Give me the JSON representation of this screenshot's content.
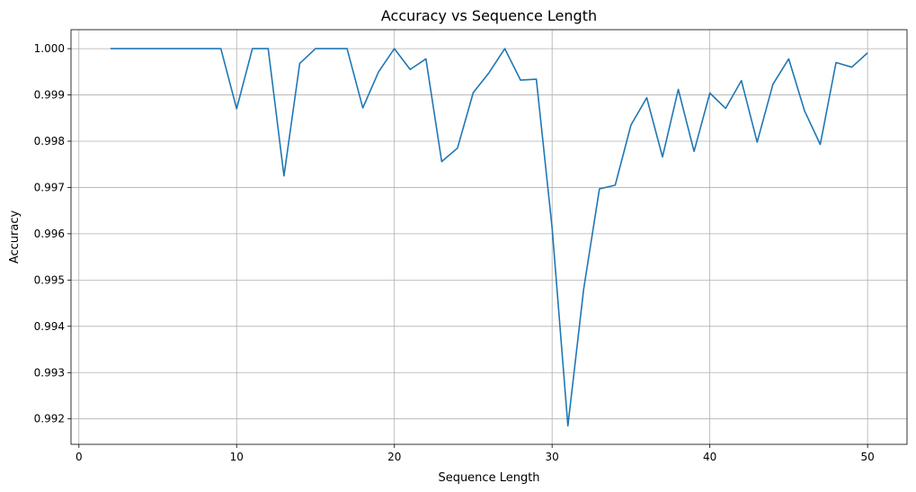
{
  "chart_data": {
    "type": "line",
    "title": "Accuracy vs Sequence Length",
    "xlabel": "Sequence Length",
    "ylabel": "Accuracy",
    "xlim": [
      -0.5,
      52.5
    ],
    "ylim": [
      0.99145,
      1.00041
    ],
    "xticks": [
      0,
      10,
      20,
      30,
      40,
      50
    ],
    "xtick_labels": [
      "0",
      "10",
      "20",
      "30",
      "40",
      "50"
    ],
    "yticks": [
      0.992,
      0.993,
      0.994,
      0.995,
      0.996,
      0.997,
      0.998,
      0.999,
      1.0
    ],
    "ytick_labels": [
      "0.992",
      "0.993",
      "0.994",
      "0.995",
      "0.996",
      "0.997",
      "0.998",
      "0.999",
      "1.000"
    ],
    "grid": true,
    "line_color": "#1f77b4",
    "series": [
      {
        "x": [
          2,
          3,
          4,
          5,
          6,
          7,
          8,
          9,
          10,
          11,
          12,
          13,
          14,
          15,
          16,
          17,
          18,
          19,
          20,
          21,
          22,
          23,
          24,
          25,
          26,
          27,
          28,
          29,
          30,
          31,
          32,
          33,
          34,
          35,
          36,
          37,
          38,
          39,
          40,
          41,
          42,
          43,
          44,
          45,
          46,
          47,
          48,
          49,
          50
        ],
        "y": [
          1.0,
          1.0,
          1.0,
          1.0,
          1.0,
          1.0,
          1.0,
          1.0,
          0.9987,
          1.0,
          1.0,
          0.99725,
          0.99968,
          1.0,
          1.0,
          1.0,
          0.99872,
          0.9995,
          1.0,
          0.99955,
          0.99978,
          0.99756,
          0.99785,
          0.99905,
          0.99948,
          1.0,
          0.99932,
          0.99934,
          0.99613,
          0.99185,
          0.9948,
          0.99697,
          0.99705,
          0.99835,
          0.99894,
          0.99766,
          0.99912,
          0.99778,
          0.99904,
          0.99871,
          0.99931,
          0.99798,
          0.99923,
          0.99978,
          0.99866,
          0.99793,
          0.9997,
          0.9996,
          0.99991
        ]
      }
    ]
  }
}
